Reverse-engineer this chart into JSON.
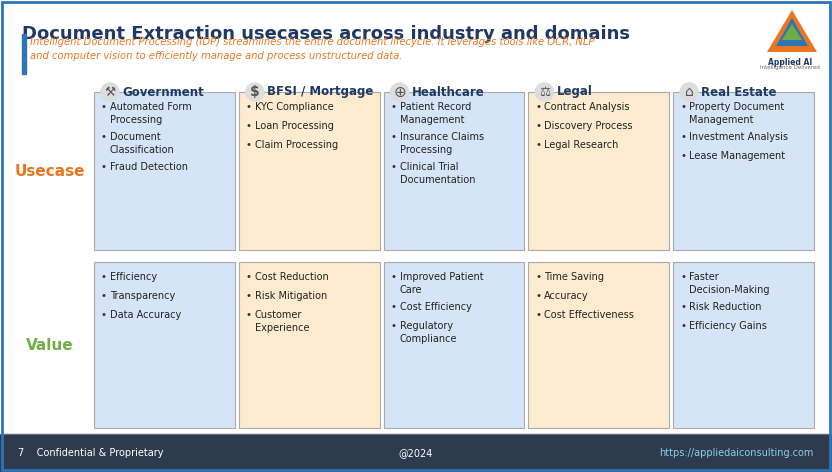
{
  "title": "Document Extraction usecases across industry and domains",
  "subtitle": "Intelligent Document Processing (IDP) streamlines the entire document lifecycle. It leverages tools like OCR, NLP\nand computer vision to efficiently manage and process unstructured data.",
  "bg_color": "#FFFFFF",
  "title_color": "#1F3864",
  "subtitle_color": "#E87722",
  "accent_bar_color": "#2E75B6",
  "columns": [
    "Government",
    "BFSI / Mortgage",
    "Healthcare",
    "Legal",
    "Real Estate"
  ],
  "usecase_items": [
    [
      "Automated Form\nProcessing",
      "Document\nClassification",
      "Fraud Detection"
    ],
    [
      "KYC Compliance",
      "Loan Processing",
      "Claim Processing"
    ],
    [
      "Patient Record\nManagement",
      "Insurance Claims\nProcessing",
      "Clinical Trial\nDocumentation"
    ],
    [
      "Contract Analysis",
      "Discovery Process",
      "Legal Research"
    ],
    [
      "Property Document\nManagement",
      "Investment Analysis",
      "Lease Management"
    ]
  ],
  "value_items": [
    [
      "Efficiency",
      "Transparency",
      "Data Accuracy"
    ],
    [
      "Cost Reduction",
      "Risk Mitigation",
      "Customer\nExperience"
    ],
    [
      "Improved Patient\nCare",
      "Cost Efficiency",
      "Regulatory\nCompliance"
    ],
    [
      "Time Saving",
      "Accuracy",
      "Cost Effectiveness"
    ],
    [
      "Faster\nDecision-Making",
      "Risk Reduction",
      "Efficiency Gains"
    ]
  ],
  "usecase_row_label": "Usecase",
  "value_row_label": "Value",
  "usecase_label_color": "#E87722",
  "value_label_color": "#70AD47",
  "usecase_bg_odd": "#D6E4F7",
  "usecase_bg_even": "#FDEBD0",
  "value_bg_odd": "#D6E4F7",
  "value_bg_even": "#FDEBD0",
  "footer_bg": "#2E3B4E",
  "footer_text_color": "#FFFFFF",
  "footer_left": "7    Confidential & Proprietary",
  "footer_center": "@2024",
  "footer_right": "https://appliedaiconsulting.com",
  "border_color": "#2E75B6",
  "header_icon_color": "#1F3864",
  "cell_border_color": "#AAAAAA",
  "bullet_color": "#333333",
  "text_color": "#222222",
  "footer_link_color": "#87CEEB",
  "logo_orange": "#E87722",
  "logo_blue": "#2E75B6",
  "logo_green": "#70AD47"
}
